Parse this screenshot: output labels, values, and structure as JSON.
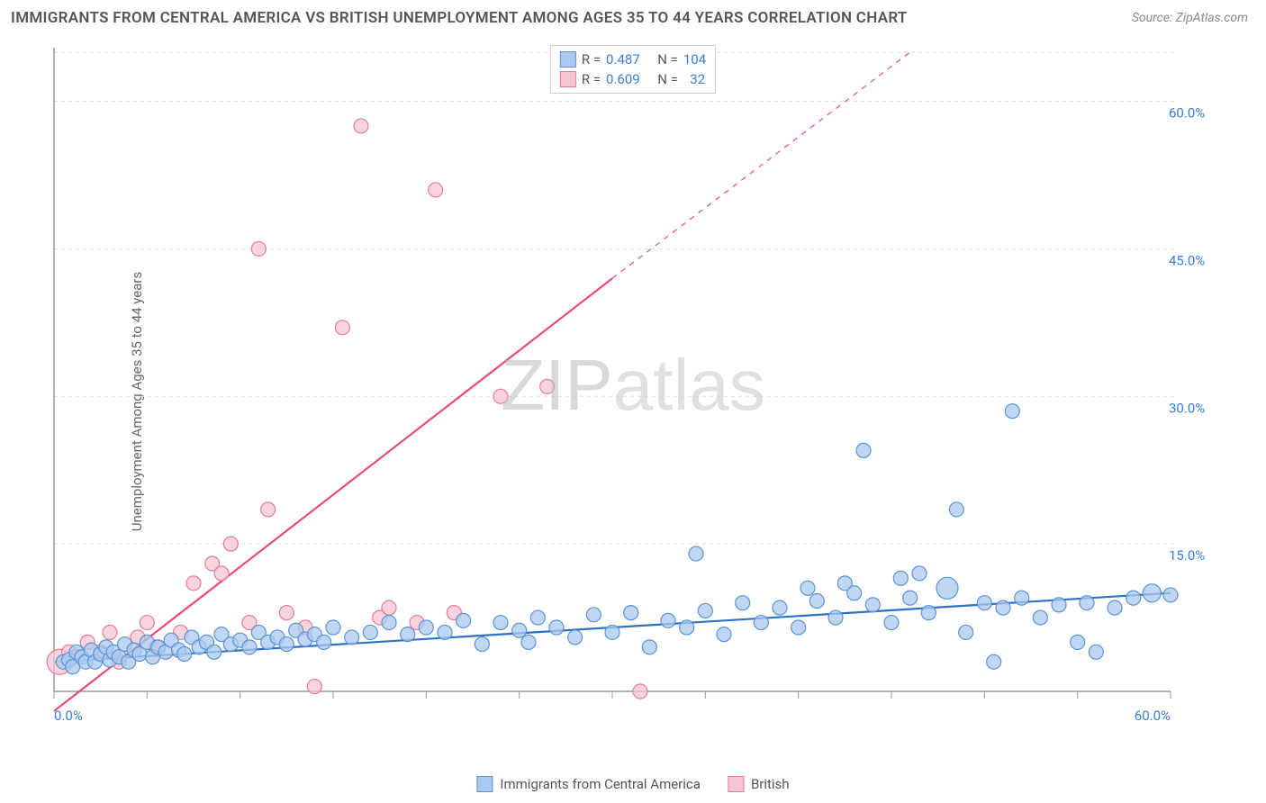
{
  "title": "IMMIGRANTS FROM CENTRAL AMERICA VS BRITISH UNEMPLOYMENT AMONG AGES 35 TO 44 YEARS CORRELATION CHART",
  "source": "Source: ZipAtlas.com",
  "ylabel": "Unemployment Among Ages 35 to 44 years",
  "watermark_a": "ZIP",
  "watermark_b": "atlas",
  "chart": {
    "type": "scatter",
    "background_color": "#ffffff",
    "grid_color": "#dddddd",
    "axis_color": "#999999",
    "xlim": [
      0,
      60
    ],
    "ylim": [
      0,
      65
    ],
    "x_ticks": [
      0,
      5,
      10,
      15,
      20,
      25,
      30,
      35,
      40,
      45,
      50,
      55,
      60
    ],
    "x_tick_labels": {
      "0": "0.0%",
      "60": "60.0%"
    },
    "y_gridlines": [
      15,
      30,
      45,
      60,
      65
    ],
    "y_tick_labels": {
      "15": "15.0%",
      "30": "30.0%",
      "45": "45.0%",
      "60": "60.0%"
    },
    "marker_radius": 8,
    "marker_stroke_width": 1.2,
    "line_width": 2.2
  },
  "series": {
    "blue": {
      "label": "Immigrants from Central America",
      "color_fill": "#a9c9ef",
      "color_stroke": "#5b93d6",
      "line_color": "#2f6fc4",
      "R": "0.487",
      "N": "104",
      "trend": {
        "x1": 0,
        "y1": 3.0,
        "x2": 60,
        "y2": 10.0
      },
      "points": [
        [
          0.5,
          3.0
        ],
        [
          0.8,
          3.2
        ],
        [
          1.0,
          2.5
        ],
        [
          1.2,
          4.0
        ],
        [
          1.5,
          3.5
        ],
        [
          1.7,
          3.0
        ],
        [
          2.0,
          4.2
        ],
        [
          2.2,
          3.0
        ],
        [
          2.5,
          3.8
        ],
        [
          2.8,
          4.5
        ],
        [
          3.0,
          3.2
        ],
        [
          3.2,
          4.0
        ],
        [
          3.5,
          3.5
        ],
        [
          3.8,
          4.8
        ],
        [
          4.0,
          3.0
        ],
        [
          4.3,
          4.2
        ],
        [
          4.6,
          3.8
        ],
        [
          5.0,
          5.0
        ],
        [
          5.3,
          3.5
        ],
        [
          5.6,
          4.5
        ],
        [
          6.0,
          4.0
        ],
        [
          6.3,
          5.2
        ],
        [
          6.7,
          4.2
        ],
        [
          7.0,
          3.8
        ],
        [
          7.4,
          5.5
        ],
        [
          7.8,
          4.5
        ],
        [
          8.2,
          5.0
        ],
        [
          8.6,
          4.0
        ],
        [
          9.0,
          5.8
        ],
        [
          9.5,
          4.8
        ],
        [
          10.0,
          5.2
        ],
        [
          10.5,
          4.5
        ],
        [
          11.0,
          6.0
        ],
        [
          11.5,
          5.0
        ],
        [
          12.0,
          5.5
        ],
        [
          12.5,
          4.8
        ],
        [
          13.0,
          6.2
        ],
        [
          13.5,
          5.3
        ],
        [
          14.0,
          5.8
        ],
        [
          14.5,
          5.0
        ],
        [
          15.0,
          6.5
        ],
        [
          16.0,
          5.5
        ],
        [
          17.0,
          6.0
        ],
        [
          18.0,
          7.0
        ],
        [
          19.0,
          5.8
        ],
        [
          20.0,
          6.5
        ],
        [
          21.0,
          6.0
        ],
        [
          22.0,
          7.2
        ],
        [
          23.0,
          4.8
        ],
        [
          24.0,
          7.0
        ],
        [
          25.0,
          6.2
        ],
        [
          25.5,
          5.0
        ],
        [
          26.0,
          7.5
        ],
        [
          27.0,
          6.5
        ],
        [
          28.0,
          5.5
        ],
        [
          29.0,
          7.8
        ],
        [
          30.0,
          6.0
        ],
        [
          31.0,
          8.0
        ],
        [
          32.0,
          4.5
        ],
        [
          33.0,
          7.2
        ],
        [
          34.0,
          6.5
        ],
        [
          34.5,
          14.0
        ],
        [
          35.0,
          8.2
        ],
        [
          36.0,
          5.8
        ],
        [
          37.0,
          9.0
        ],
        [
          38.0,
          7.0
        ],
        [
          39.0,
          8.5
        ],
        [
          40.0,
          6.5
        ],
        [
          40.5,
          10.5
        ],
        [
          41.0,
          9.2
        ],
        [
          42.0,
          7.5
        ],
        [
          42.5,
          11.0
        ],
        [
          43.0,
          10.0
        ],
        [
          43.5,
          24.5
        ],
        [
          44.0,
          8.8
        ],
        [
          45.0,
          7.0
        ],
        [
          45.5,
          11.5
        ],
        [
          46.0,
          9.5
        ],
        [
          46.5,
          12.0
        ],
        [
          47.0,
          8.0
        ],
        [
          48.0,
          10.5,
          12
        ],
        [
          48.5,
          18.5
        ],
        [
          49.0,
          6.0
        ],
        [
          50.0,
          9.0
        ],
        [
          50.5,
          3.0
        ],
        [
          51.0,
          8.5
        ],
        [
          51.5,
          28.5
        ],
        [
          52.0,
          9.5
        ],
        [
          53.0,
          7.5
        ],
        [
          54.0,
          8.8
        ],
        [
          55.0,
          5.0
        ],
        [
          55.5,
          9.0
        ],
        [
          56.0,
          4.0
        ],
        [
          57.0,
          8.5
        ],
        [
          58.0,
          9.5
        ],
        [
          59.0,
          10.0,
          10
        ],
        [
          60.0,
          9.8
        ]
      ]
    },
    "pink": {
      "label": "British",
      "color_fill": "#f7c6d0",
      "color_stroke": "#e77a9a",
      "line_color": "#e94b77",
      "R": "0.609",
      "N": "32",
      "trend_solid": {
        "x1": 0,
        "y1": -2.0,
        "x2": 30,
        "y2": 42.0
      },
      "trend_dashed": {
        "x1": 30,
        "y1": 42.0,
        "x2": 46,
        "y2": 65.0
      },
      "points": [
        [
          0.3,
          3.0,
          14
        ],
        [
          0.8,
          4.0
        ],
        [
          1.2,
          3.5
        ],
        [
          1.8,
          5.0
        ],
        [
          2.5,
          4.0
        ],
        [
          3.0,
          6.0
        ],
        [
          3.5,
          3.0
        ],
        [
          4.5,
          5.5
        ],
        [
          5.0,
          7.0
        ],
        [
          5.5,
          4.5
        ],
        [
          6.8,
          6.0
        ],
        [
          7.5,
          11.0
        ],
        [
          8.5,
          13.0
        ],
        [
          9.0,
          12.0
        ],
        [
          9.5,
          15.0
        ],
        [
          10.5,
          7.0
        ],
        [
          11.0,
          45.0
        ],
        [
          11.5,
          18.5
        ],
        [
          12.5,
          8.0
        ],
        [
          13.5,
          6.5
        ],
        [
          14.0,
          0.5
        ],
        [
          15.5,
          37.0
        ],
        [
          16.5,
          57.5
        ],
        [
          17.5,
          7.5
        ],
        [
          18.0,
          8.5
        ],
        [
          19.5,
          7.0
        ],
        [
          20.5,
          51.0
        ],
        [
          21.5,
          8.0
        ],
        [
          24.0,
          30.0
        ],
        [
          26.5,
          31.0
        ],
        [
          31.5,
          0.0
        ]
      ]
    }
  },
  "legend_top": [
    {
      "swatch_fill": "#a9c9ef",
      "swatch_stroke": "#5b93d6",
      "r_label": "R =",
      "r_val": "0.487",
      "n_label": "N =",
      "n_val": "104"
    },
    {
      "swatch_fill": "#f7c6d0",
      "swatch_stroke": "#e77a9a",
      "r_label": "R =",
      "r_val": "0.609",
      "n_label": "N =",
      "n_val": "  32"
    }
  ],
  "legend_bottom": [
    {
      "swatch_fill": "#a9c9ef",
      "swatch_stroke": "#5b93d6",
      "label": "Immigrants from Central America"
    },
    {
      "swatch_fill": "#f7c6d0",
      "swatch_stroke": "#e77a9a",
      "label": "British"
    }
  ]
}
